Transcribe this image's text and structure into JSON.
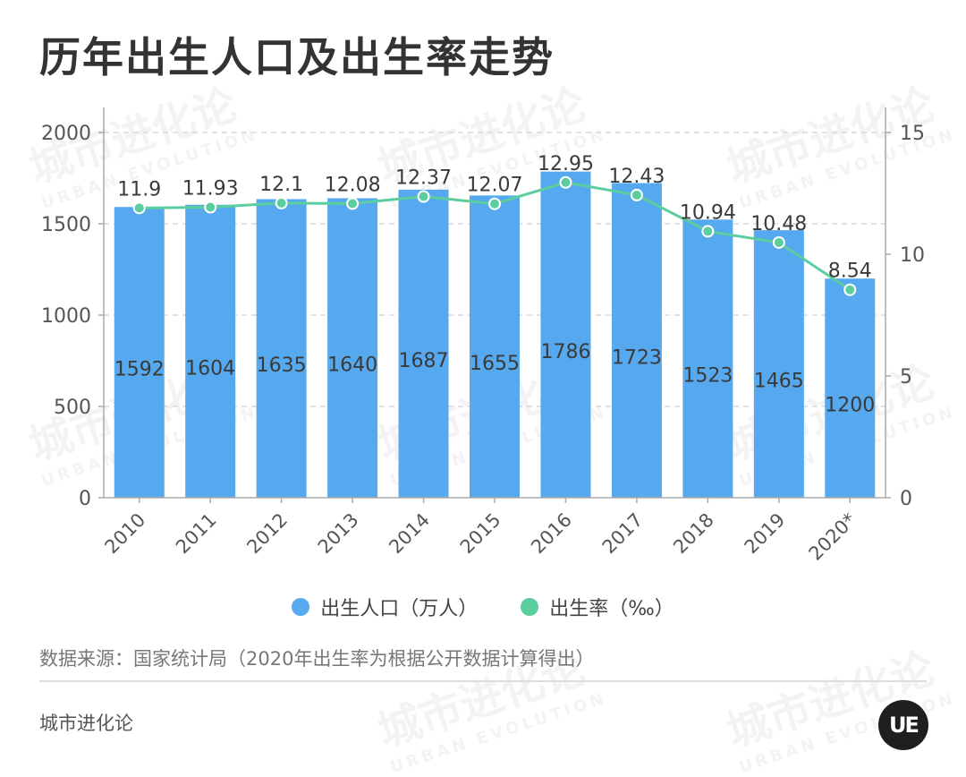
{
  "title": "历年出生人口及出生率走势",
  "legend": {
    "population": "出生人口（万人）",
    "rate": "出生率（‰）"
  },
  "colors": {
    "bar": "#56a9ee",
    "line": "#5ccd9e",
    "grid": "#d9d9d9",
    "axis": "#aaaaaa"
  },
  "source": "数据来源：国家统计局（2020年出生率为根据公开数据计算得出）",
  "brand": "城市进化论",
  "logo_text": "UE",
  "watermark": {
    "cn": "城市进化论",
    "en": "URBAN EVOLUTION"
  },
  "chart_data": {
    "type": "bar",
    "categories": [
      "2010",
      "2011",
      "2012",
      "2013",
      "2014",
      "2015",
      "2016",
      "2017",
      "2018",
      "2019",
      "2020*"
    ],
    "series": [
      {
        "name": "出生人口（万人）",
        "type": "bar",
        "axis": "left",
        "values": [
          1592,
          1604,
          1635,
          1640,
          1687,
          1655,
          1786,
          1723,
          1523,
          1465,
          1200
        ]
      },
      {
        "name": "出生率（‰）",
        "type": "line",
        "axis": "right",
        "values": [
          11.9,
          11.93,
          12.1,
          12.08,
          12.37,
          12.07,
          12.95,
          12.43,
          10.94,
          10.48,
          8.54
        ]
      }
    ],
    "y_left": {
      "min": 0,
      "max": 2000,
      "ticks": [
        0,
        500,
        1000,
        1500,
        2000
      ]
    },
    "y_right": {
      "min": 0,
      "max": 15,
      "ticks": [
        0,
        5,
        10,
        15
      ]
    },
    "grid": true,
    "legend_position": "bottom"
  }
}
